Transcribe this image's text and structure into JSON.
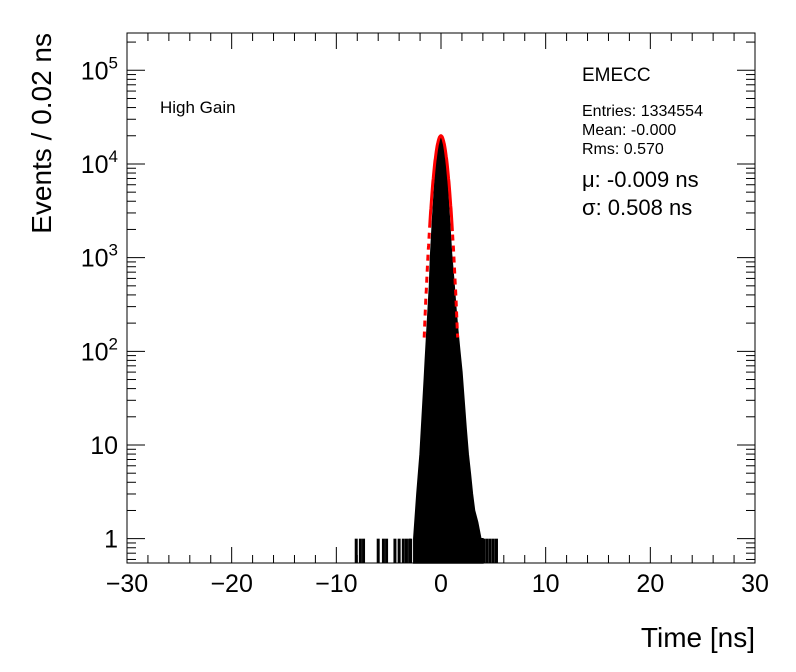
{
  "chart_data": {
    "type": "histogram",
    "title": "",
    "xlabel": "Time [ns]",
    "ylabel": "Events / 0.02 ns",
    "xlim": [
      -30,
      30
    ],
    "ylim": [
      0.55,
      250000
    ],
    "yscale": "log",
    "x_ticks": [
      -30,
      -20,
      -10,
      0,
      10,
      20,
      30
    ],
    "x_tick_labels": [
      "−30",
      "−20",
      "−10",
      "0",
      "10",
      "20",
      "30"
    ],
    "y_ticks": [
      1,
      10,
      100,
      1000,
      10000,
      100000
    ],
    "y_tick_labels": [
      {
        "base": "1",
        "exp": ""
      },
      {
        "base": "10",
        "exp": ""
      },
      {
        "base": "10",
        "exp": "2"
      },
      {
        "base": "10",
        "exp": "3"
      },
      {
        "base": "10",
        "exp": "4"
      },
      {
        "base": "10",
        "exp": "5"
      }
    ],
    "annotation": "High Gain",
    "stats": {
      "name": "EMECC",
      "entries": "Entries: 1334554",
      "mean": "Mean: -0.000",
      "rms": "Rms: 0.570"
    },
    "fit": {
      "mu_text": "μ: -0.009 ns",
      "sigma_text": "σ: 0.508 ns",
      "mu": -0.009,
      "sigma": 0.508,
      "amplitude": 20000,
      "color": "#ff0000"
    },
    "histogram": {
      "color": "#000000",
      "core_points": [
        [
          -2.6,
          1
        ],
        [
          -2.3,
          3
        ],
        [
          -2.0,
          8
        ],
        [
          -1.8,
          20
        ],
        [
          -1.6,
          50
        ],
        [
          -1.5,
          80
        ],
        [
          -1.3,
          200
        ],
        [
          -1.1,
          500
        ],
        [
          -1.0,
          1000
        ],
        [
          -0.8,
          2600
        ],
        [
          -0.6,
          6000
        ],
        [
          -0.4,
          12000
        ],
        [
          -0.2,
          18000
        ],
        [
          0.0,
          20000
        ],
        [
          0.2,
          18000
        ],
        [
          0.4,
          12000
        ],
        [
          0.6,
          6000
        ],
        [
          0.8,
          2600
        ],
        [
          1.0,
          1100
        ],
        [
          1.2,
          600
        ],
        [
          1.4,
          300
        ],
        [
          1.6,
          170
        ],
        [
          1.8,
          100
        ],
        [
          2.0,
          60
        ],
        [
          2.2,
          30
        ],
        [
          2.4,
          15
        ],
        [
          2.6,
          8
        ],
        [
          2.8,
          5
        ],
        [
          3.0,
          3
        ],
        [
          3.2,
          2
        ],
        [
          3.5,
          1.5
        ],
        [
          3.8,
          1
        ],
        [
          4.0,
          1
        ]
      ],
      "tail_spikes": [
        -8.1,
        -7.7,
        -7.4,
        -6.0,
        -5.5,
        -5.2,
        -4.4,
        -4.0,
        -3.6,
        -3.3,
        -3.0,
        -2.9,
        3.0,
        3.3,
        3.6,
        4.1,
        4.4,
        4.7,
        5.0,
        5.3
      ]
    }
  }
}
